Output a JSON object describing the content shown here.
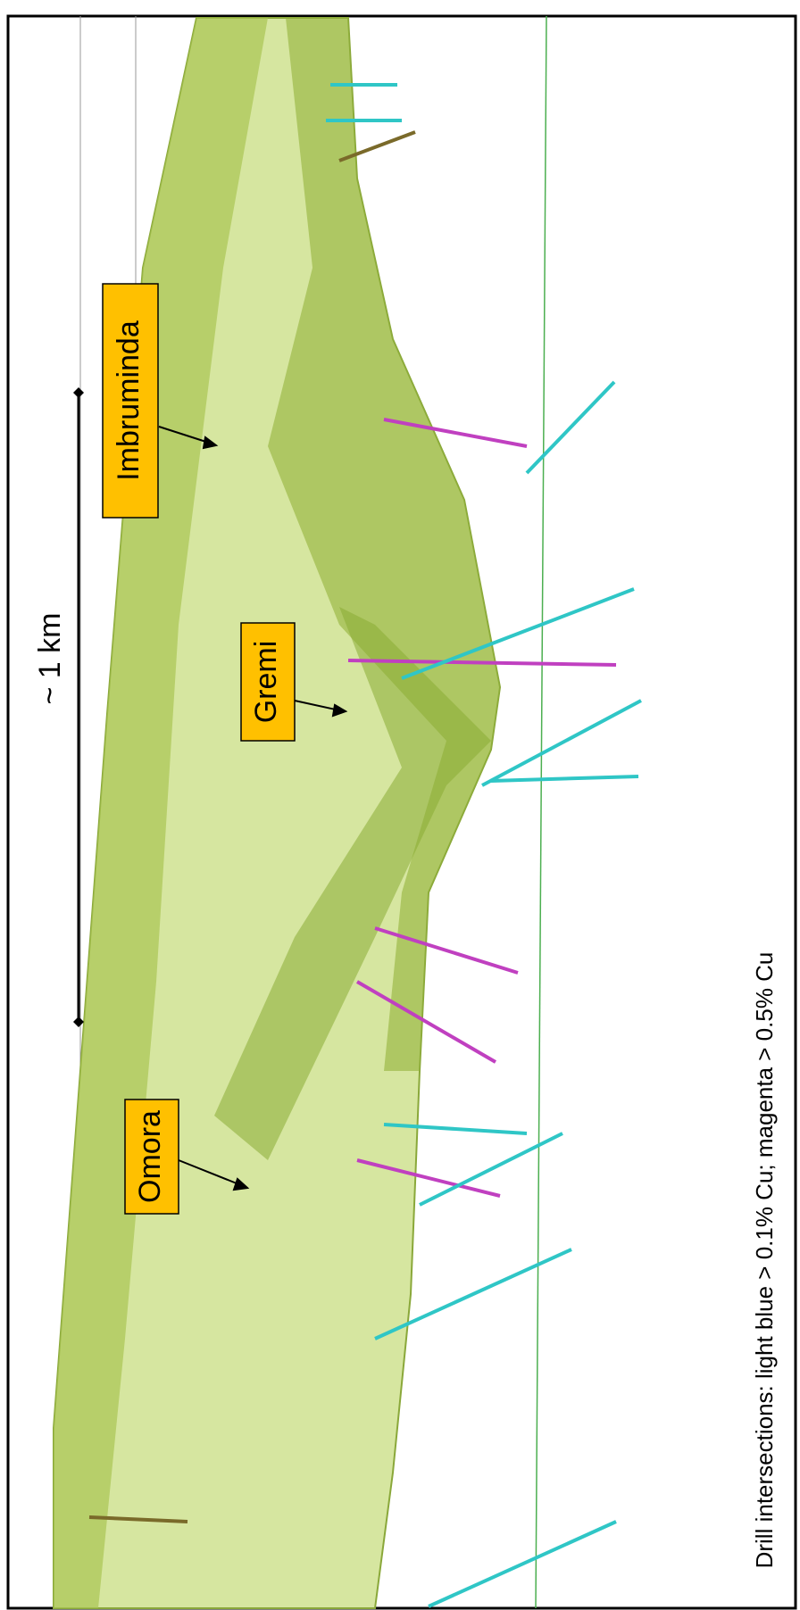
{
  "labels": {
    "imbruminda": "Imbruminda",
    "gremi": "Gremi",
    "omora": "Omora"
  },
  "scale": "~ 1 km",
  "caption": "Drill intersections: light blue > 0.1% Cu; magenta > 0.5% Cu"
}
